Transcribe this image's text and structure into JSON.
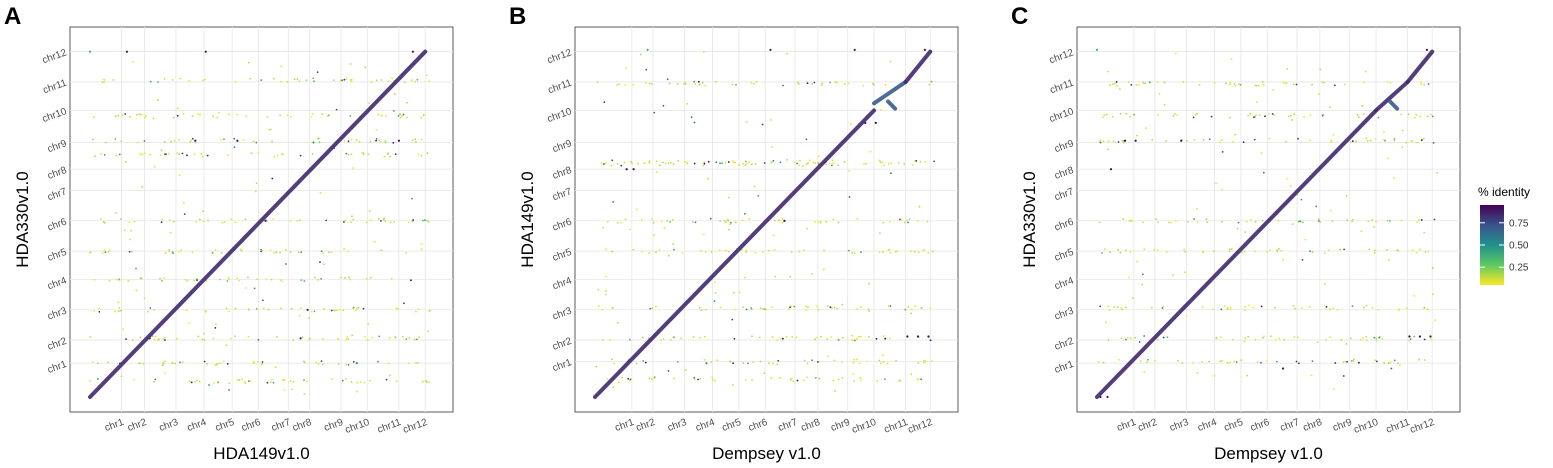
{
  "chart_data": [
    {
      "type": "scatter",
      "panel_label": "A",
      "xlabel": "HDA149v1.0",
      "ylabel": "HDA330v1.0",
      "x_ticks": [
        {
          "label": "chr1",
          "pos": 0.09
        },
        {
          "label": "chr2",
          "pos": 0.155
        },
        {
          "label": "chr3",
          "pos": 0.245
        },
        {
          "label": "chr4",
          "pos": 0.325
        },
        {
          "label": "chr5",
          "pos": 0.405
        },
        {
          "label": "chr6",
          "pos": 0.48
        },
        {
          "label": "chr7",
          "pos": 0.565
        },
        {
          "label": "chr8",
          "pos": 0.625
        },
        {
          "label": "chr9",
          "pos": 0.715
        },
        {
          "label": "chr10",
          "pos": 0.79
        },
        {
          "label": "chr11",
          "pos": 0.88
        },
        {
          "label": "chr12",
          "pos": 0.955
        }
      ],
      "y_ticks": [
        {
          "label": "chr1",
          "pos": 0.095
        },
        {
          "label": "chr2",
          "pos": 0.16
        },
        {
          "label": "chr3",
          "pos": 0.245
        },
        {
          "label": "chr4",
          "pos": 0.33
        },
        {
          "label": "chr5",
          "pos": 0.41
        },
        {
          "label": "chr6",
          "pos": 0.495
        },
        {
          "label": "chr7",
          "pos": 0.58
        },
        {
          "label": "chr8",
          "pos": 0.64
        },
        {
          "label": "chr9",
          "pos": 0.715
        },
        {
          "label": "chr10",
          "pos": 0.805
        },
        {
          "label": "chr11",
          "pos": 0.885
        },
        {
          "label": "chr12",
          "pos": 0.97
        }
      ],
      "diagonal": [
        {
          "x0": 0.0,
          "y0": 0.0,
          "x1": 0.955,
          "y1": 0.97,
          "identity": 0.85
        }
      ],
      "bands_y": [
        0.045,
        0.095,
        0.165,
        0.245,
        0.33,
        0.41,
        0.495,
        0.68,
        0.72,
        0.79,
        0.89
      ],
      "sparse_points": [
        {
          "x": 0.3,
          "y": 0.72,
          "identity": 0.95
        },
        {
          "x": 0.42,
          "y": 0.72,
          "identity": 0.95
        },
        {
          "x": 0.88,
          "y": 0.72,
          "identity": 0.95
        },
        {
          "x": 0.6,
          "y": 0.165,
          "identity": 0.9
        },
        {
          "x": 0.17,
          "y": 0.165,
          "identity": 0.9
        },
        {
          "x": 0.5,
          "y": 0.495,
          "identity": 0.9
        },
        {
          "x": 0.76,
          "y": 0.095,
          "identity": 0.5
        },
        {
          "x": 0.62,
          "y": 0.245,
          "identity": 0.9
        },
        {
          "x": 0.92,
          "y": 0.97,
          "identity": 0.9
        },
        {
          "x": 0.0,
          "y": 0.97,
          "identity": 0.4
        },
        {
          "x": 0.105,
          "y": 0.97,
          "identity": 0.9
        },
        {
          "x": 0.33,
          "y": 0.97,
          "identity": 0.9
        }
      ]
    },
    {
      "type": "scatter",
      "panel_label": "B",
      "xlabel": "Dempsey v1.0",
      "ylabel": "HDA149v1.0",
      "x_ticks": [
        {
          "label": "chr1",
          "pos": 0.105
        },
        {
          "label": "chr2",
          "pos": 0.165
        },
        {
          "label": "chr3",
          "pos": 0.255
        },
        {
          "label": "chr4",
          "pos": 0.335
        },
        {
          "label": "chr5",
          "pos": 0.41
        },
        {
          "label": "chr6",
          "pos": 0.485
        },
        {
          "label": "chr7",
          "pos": 0.57
        },
        {
          "label": "chr8",
          "pos": 0.635
        },
        {
          "label": "chr9",
          "pos": 0.72
        },
        {
          "label": "chr10",
          "pos": 0.795
        },
        {
          "label": "chr11",
          "pos": 0.885
        },
        {
          "label": "chr12",
          "pos": 0.955
        }
      ],
      "y_ticks": [
        {
          "label": "chr1",
          "pos": 0.1
        },
        {
          "label": "chr2",
          "pos": 0.16
        },
        {
          "label": "chr3",
          "pos": 0.245
        },
        {
          "label": "chr4",
          "pos": 0.33
        },
        {
          "label": "chr5",
          "pos": 0.41
        },
        {
          "label": "chr6",
          "pos": 0.495
        },
        {
          "label": "chr7",
          "pos": 0.58
        },
        {
          "label": "chr8",
          "pos": 0.64
        },
        {
          "label": "chr9",
          "pos": 0.715
        },
        {
          "label": "chr10",
          "pos": 0.805
        },
        {
          "label": "chr11",
          "pos": 0.885
        },
        {
          "label": "chr12",
          "pos": 0.97
        }
      ],
      "diagonal": [
        {
          "x0": 0.0,
          "y0": 0.0,
          "x1": 0.795,
          "y1": 0.805,
          "identity": 0.85
        },
        {
          "x0": 0.795,
          "y0": 0.825,
          "x1": 0.885,
          "y1": 0.885,
          "identity": 0.7
        },
        {
          "x0": 0.835,
          "y0": 0.83,
          "x1": 0.855,
          "y1": 0.81,
          "identity": 0.7
        },
        {
          "x0": 0.885,
          "y0": 0.885,
          "x1": 0.955,
          "y1": 0.97,
          "identity": 0.85
        }
      ],
      "bands_y": [
        0.05,
        0.1,
        0.165,
        0.25,
        0.41,
        0.495,
        0.66,
        0.88,
        0.655
      ],
      "sparse_points": [
        {
          "x": 0.09,
          "y": 0.64,
          "identity": 0.95
        },
        {
          "x": 0.11,
          "y": 0.64,
          "identity": 0.95
        },
        {
          "x": 0.54,
          "y": 0.495,
          "identity": 0.95
        },
        {
          "x": 0.77,
          "y": 0.77,
          "identity": 0.95
        },
        {
          "x": 0.8,
          "y": 0.77,
          "identity": 0.95
        },
        {
          "x": 0.89,
          "y": 0.17,
          "identity": 0.95
        },
        {
          "x": 0.92,
          "y": 0.17,
          "identity": 0.95
        },
        {
          "x": 0.95,
          "y": 0.17,
          "identity": 0.95
        },
        {
          "x": 0.94,
          "y": 0.975,
          "identity": 0.9
        },
        {
          "x": 0.74,
          "y": 0.975,
          "identity": 0.9
        },
        {
          "x": 0.15,
          "y": 0.975,
          "identity": 0.4
        },
        {
          "x": 0.5,
          "y": 0.975,
          "identity": 0.9
        }
      ]
    },
    {
      "type": "scatter",
      "panel_label": "C",
      "xlabel": "Dempsey v1.0",
      "ylabel": "HDA330v1.0",
      "x_ticks": [
        {
          "label": "chr1",
          "pos": 0.105
        },
        {
          "label": "chr2",
          "pos": 0.165
        },
        {
          "label": "chr3",
          "pos": 0.255
        },
        {
          "label": "chr4",
          "pos": 0.335
        },
        {
          "label": "chr5",
          "pos": 0.41
        },
        {
          "label": "chr6",
          "pos": 0.485
        },
        {
          "label": "chr7",
          "pos": 0.57
        },
        {
          "label": "chr8",
          "pos": 0.635
        },
        {
          "label": "chr9",
          "pos": 0.72
        },
        {
          "label": "chr10",
          "pos": 0.795
        },
        {
          "label": "chr11",
          "pos": 0.885
        },
        {
          "label": "chr12",
          "pos": 0.955
        }
      ],
      "y_ticks": [
        {
          "label": "chr1",
          "pos": 0.095
        },
        {
          "label": "chr2",
          "pos": 0.16
        },
        {
          "label": "chr3",
          "pos": 0.245
        },
        {
          "label": "chr4",
          "pos": 0.33
        },
        {
          "label": "chr5",
          "pos": 0.41
        },
        {
          "label": "chr6",
          "pos": 0.495
        },
        {
          "label": "chr7",
          "pos": 0.58
        },
        {
          "label": "chr8",
          "pos": 0.64
        },
        {
          "label": "chr9",
          "pos": 0.715
        },
        {
          "label": "chr10",
          "pos": 0.805
        },
        {
          "label": "chr11",
          "pos": 0.885
        },
        {
          "label": "chr12",
          "pos": 0.97
        }
      ],
      "diagonal": [
        {
          "x0": 0.0,
          "y0": 0.0,
          "x1": 0.795,
          "y1": 0.805,
          "identity": 0.85
        },
        {
          "x0": 0.795,
          "y0": 0.805,
          "x1": 0.885,
          "y1": 0.885,
          "identity": 0.85
        },
        {
          "x0": 0.835,
          "y0": 0.83,
          "x1": 0.855,
          "y1": 0.81,
          "identity": 0.7
        },
        {
          "x0": 0.885,
          "y0": 0.885,
          "x1": 0.955,
          "y1": 0.97,
          "identity": 0.85
        }
      ],
      "bands_y": [
        0.1,
        0.165,
        0.25,
        0.41,
        0.495,
        0.72,
        0.79,
        0.88
      ],
      "sparse_points": [
        {
          "x": 0.08,
          "y": 0.72,
          "identity": 0.95
        },
        {
          "x": 0.11,
          "y": 0.72,
          "identity": 0.95
        },
        {
          "x": 0.24,
          "y": 0.72,
          "identity": 0.95
        },
        {
          "x": 0.04,
          "y": 0.64,
          "identity": 0.95
        },
        {
          "x": 0.89,
          "y": 0.17,
          "identity": 0.95
        },
        {
          "x": 0.92,
          "y": 0.17,
          "identity": 0.95
        },
        {
          "x": 0.95,
          "y": 0.17,
          "identity": 0.95
        },
        {
          "x": 0.01,
          "y": 0.0,
          "identity": 0.9
        },
        {
          "x": 0.03,
          "y": 0.0,
          "identity": 0.9
        },
        {
          "x": 0.94,
          "y": 0.975,
          "identity": 0.9
        },
        {
          "x": 0.0,
          "y": 0.975,
          "identity": 0.4
        },
        {
          "x": 0.53,
          "y": 0.08,
          "identity": 0.9
        }
      ]
    }
  ],
  "legend": {
    "title": "% identity",
    "ticks": [
      {
        "label": "0.75",
        "value": 0.75
      },
      {
        "label": "0.50",
        "value": 0.5
      },
      {
        "label": "0.25",
        "value": 0.25
      }
    ],
    "range": [
      0.05,
      0.95
    ],
    "colors": [
      "#fde725",
      "#5ec962",
      "#21918c",
      "#3b528b",
      "#440154"
    ]
  }
}
